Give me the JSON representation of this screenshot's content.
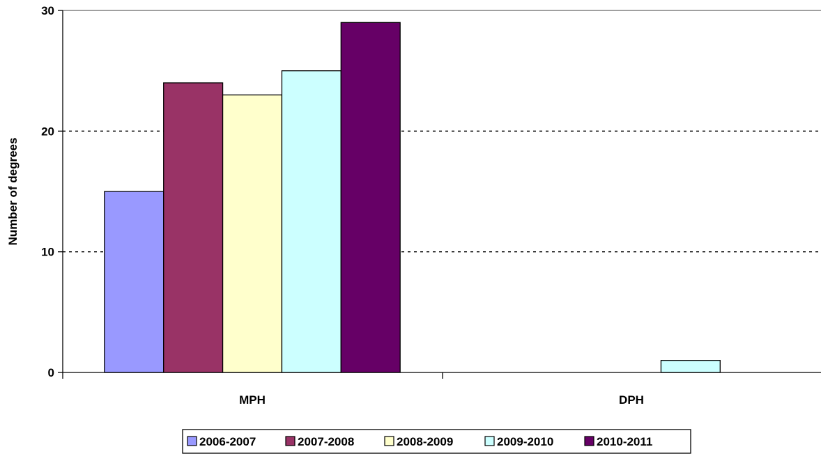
{
  "chart_data": {
    "type": "bar",
    "categories": [
      "MPH",
      "DPH"
    ],
    "series": [
      {
        "name": "2006-2007",
        "values": [
          15,
          0
        ],
        "color": "#9999ff"
      },
      {
        "name": "2007-2008",
        "values": [
          24,
          0
        ],
        "color": "#993366"
      },
      {
        "name": "2008-2009",
        "values": [
          23,
          0
        ],
        "color": "#ffffcc"
      },
      {
        "name": "2009-2010",
        "values": [
          25,
          1
        ],
        "color": "#ccffff"
      },
      {
        "name": "2010-2011",
        "values": [
          29,
          0
        ],
        "color": "#660066"
      }
    ],
    "title": "",
    "xlabel": "",
    "ylabel": "Number of degrees",
    "ylim": [
      0,
      30
    ],
    "yticks": [
      "0",
      "10",
      "20",
      "30"
    ],
    "grid": "dashed horizontal",
    "legend": "bottom"
  }
}
